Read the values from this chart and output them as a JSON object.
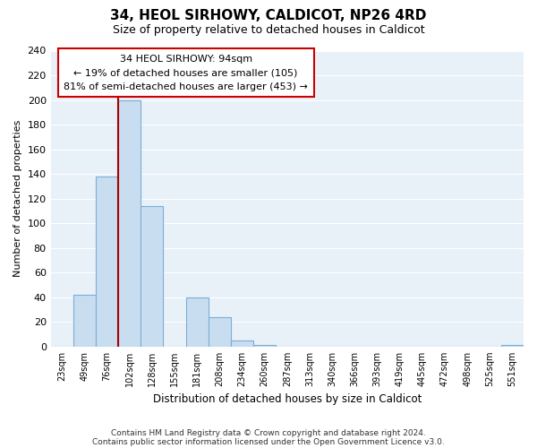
{
  "title": "34, HEOL SIRHOWY, CALDICOT, NP26 4RD",
  "subtitle": "Size of property relative to detached houses in Caldicot",
  "xlabel": "Distribution of detached houses by size in Caldicot",
  "ylabel": "Number of detached properties",
  "bar_labels": [
    "23sqm",
    "49sqm",
    "76sqm",
    "102sqm",
    "128sqm",
    "155sqm",
    "181sqm",
    "208sqm",
    "234sqm",
    "260sqm",
    "287sqm",
    "313sqm",
    "340sqm",
    "366sqm",
    "393sqm",
    "419sqm",
    "445sqm",
    "472sqm",
    "498sqm",
    "525sqm",
    "551sqm"
  ],
  "bar_values": [
    0,
    42,
    138,
    200,
    114,
    0,
    40,
    24,
    5,
    1,
    0,
    0,
    0,
    0,
    0,
    0,
    0,
    0,
    0,
    0,
    1
  ],
  "bar_color": "#c8ddf0",
  "bar_edge_color": "#7bafd4",
  "ylim": [
    0,
    240
  ],
  "yticks": [
    0,
    20,
    40,
    60,
    80,
    100,
    120,
    140,
    160,
    180,
    200,
    220,
    240
  ],
  "vline_x": 2.5,
  "vline_color": "#aa0000",
  "annotation_title": "34 HEOL SIRHOWY: 94sqm",
  "annotation_line1": "← 19% of detached houses are smaller (105)",
  "annotation_line2": "81% of semi-detached houses are larger (453) →",
  "annotation_box_color": "#ffffff",
  "annotation_box_edge": "#cc0000",
  "footer1": "Contains HM Land Registry data © Crown copyright and database right 2024.",
  "footer2": "Contains public sector information licensed under the Open Government Licence v3.0.",
  "bg_color": "#ffffff",
  "plot_bg_color": "#e8f0f8",
  "grid_color": "#ffffff"
}
